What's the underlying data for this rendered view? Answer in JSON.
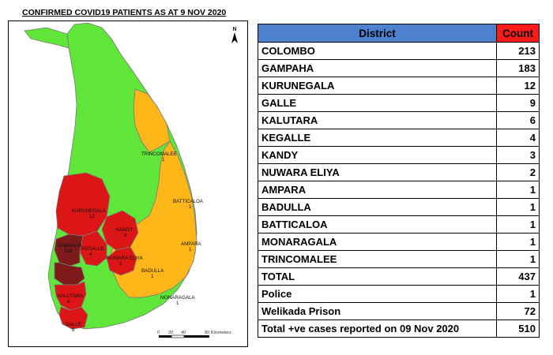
{
  "map": {
    "title": "CONFIRMED COVID19 PATIENTS AS AT 9 NOV 2020",
    "north_label": "N",
    "scale": {
      "ticks": [
        "0",
        "20",
        "40",
        "80 Kilometers"
      ]
    },
    "colors": {
      "none": "#5fe639",
      "low": "#ffb619",
      "medium": "#dc1616",
      "high": "#7d1a1a"
    },
    "district_labels": [
      {
        "id": "trincomalee",
        "name": "TRINCOMALEE",
        "count": "1"
      },
      {
        "id": "batticaloa",
        "name": "BATTICALOA",
        "count": "1"
      },
      {
        "id": "kurunegala",
        "name": "KURUNEGALA",
        "count": "12"
      },
      {
        "id": "kandy",
        "name": "KANDY",
        "count": "3"
      },
      {
        "id": "gampaha",
        "name": "GAMPAHA",
        "count": "183"
      },
      {
        "id": "kegalle",
        "name": "KEGALLE",
        "count": "4"
      },
      {
        "id": "nuwara-eliya",
        "name": "NUWARA ELIYA",
        "count": "2"
      },
      {
        "id": "ampara",
        "name": "AMPARA",
        "count": "1"
      },
      {
        "id": "badulla",
        "name": "BADULLA",
        "count": "1"
      },
      {
        "id": "monaragala",
        "name": "MONARAGALA",
        "count": "1"
      },
      {
        "id": "kalutara",
        "name": "KALUTARA",
        "count": "6"
      },
      {
        "id": "galle",
        "name": "GALLE",
        "count": "9"
      }
    ]
  },
  "table": {
    "header": {
      "district": "District",
      "count": "Count"
    },
    "rows": [
      {
        "district": "COLOMBO",
        "count": "213"
      },
      {
        "district": "GAMPAHA",
        "count": "183"
      },
      {
        "district": "KURUNEGALA",
        "count": "12"
      },
      {
        "district": "GALLE",
        "count": "9"
      },
      {
        "district": "KALUTARA",
        "count": "6"
      },
      {
        "district": "KEGALLE",
        "count": "4"
      },
      {
        "district": "KANDY",
        "count": "3"
      },
      {
        "district": "NUWARA ELIYA",
        "count": "2"
      },
      {
        "district": "AMPARA",
        "count": "1"
      },
      {
        "district": "BADULLA",
        "count": "1"
      },
      {
        "district": "BATTICALOA",
        "count": "1"
      },
      {
        "district": "MONARAGALA",
        "count": "1"
      },
      {
        "district": "TRINCOMALEE",
        "count": "1"
      }
    ],
    "total": {
      "label": "TOTAL",
      "count": "437"
    },
    "extra": [
      {
        "label": "Police",
        "count": "1"
      },
      {
        "label": "Welikada Prison",
        "count": "72"
      }
    ],
    "grand_total": {
      "label": "Total +ve cases reported on 09 Nov 2020",
      "count": "510"
    }
  }
}
